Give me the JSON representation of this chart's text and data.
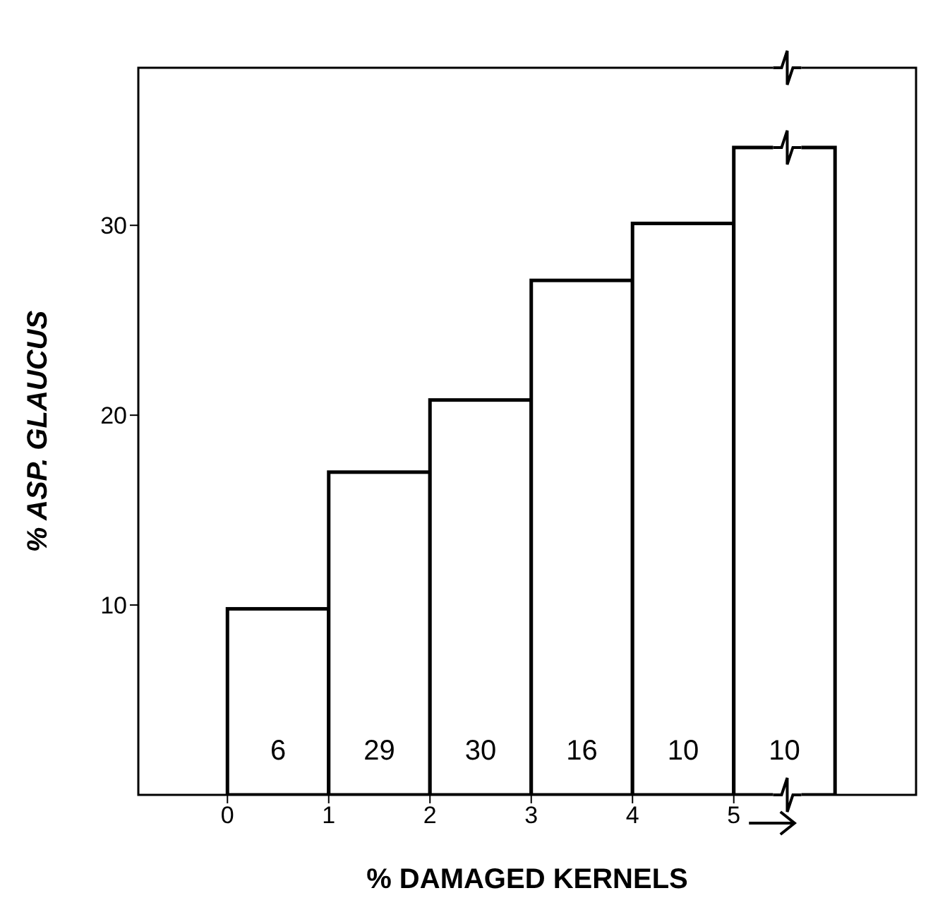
{
  "chart_data": {
    "type": "histogram",
    "xlabel": "% DAMAGED KERNELS",
    "ylabel": "% ASP. GLAUCUS",
    "bins": [
      0,
      1,
      2,
      3,
      4,
      5,
      6
    ],
    "values": [
      9.8,
      17.0,
      20.8,
      27.1,
      30.1,
      34.1
    ],
    "color": "#ffffff",
    "xlim": [
      -0.88,
      6.8
    ],
    "ylim": [
      0,
      38.3
    ],
    "xticks": [
      0,
      1,
      2,
      3,
      4,
      5
    ],
    "yticks": [
      10,
      20,
      30
    ],
    "grid": false,
    "annotations": [
      "6",
      "29",
      "30",
      "16",
      "10",
      "10"
    ]
  }
}
